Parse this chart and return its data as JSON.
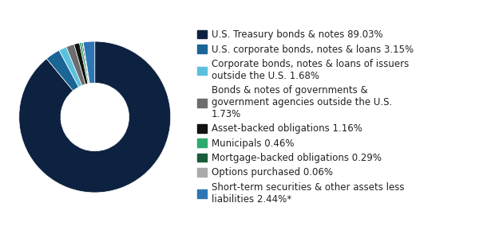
{
  "slices": [
    89.03,
    3.15,
    1.68,
    1.73,
    1.16,
    0.46,
    0.29,
    0.06,
    2.44
  ],
  "colors": [
    "#0d2240",
    "#1a6496",
    "#5bc0de",
    "#6d6d6d",
    "#111111",
    "#2eaa6e",
    "#1a5c3a",
    "#aaaaaa",
    "#2e75b6"
  ],
  "labels": [
    "U.S. Treasury bonds & notes 89.03%",
    "U.S. corporate bonds, notes & loans 3.15%",
    "Corporate bonds, notes & loans of issuers\noutside the U.S. 1.68%",
    "Bonds & notes of governments &\ngovernment agencies outside the U.S.\n1.73%",
    "Asset-backed obligations 1.16%",
    "Municipals 0.46%",
    "Mortgage-backed obligations 0.29%",
    "Options purchased 0.06%",
    "Short-term securities & other assets less\nliabilities 2.44%*"
  ],
  "background_color": "#ffffff",
  "legend_fontsize": 8.5,
  "wedge_linewidth": 0.5
}
